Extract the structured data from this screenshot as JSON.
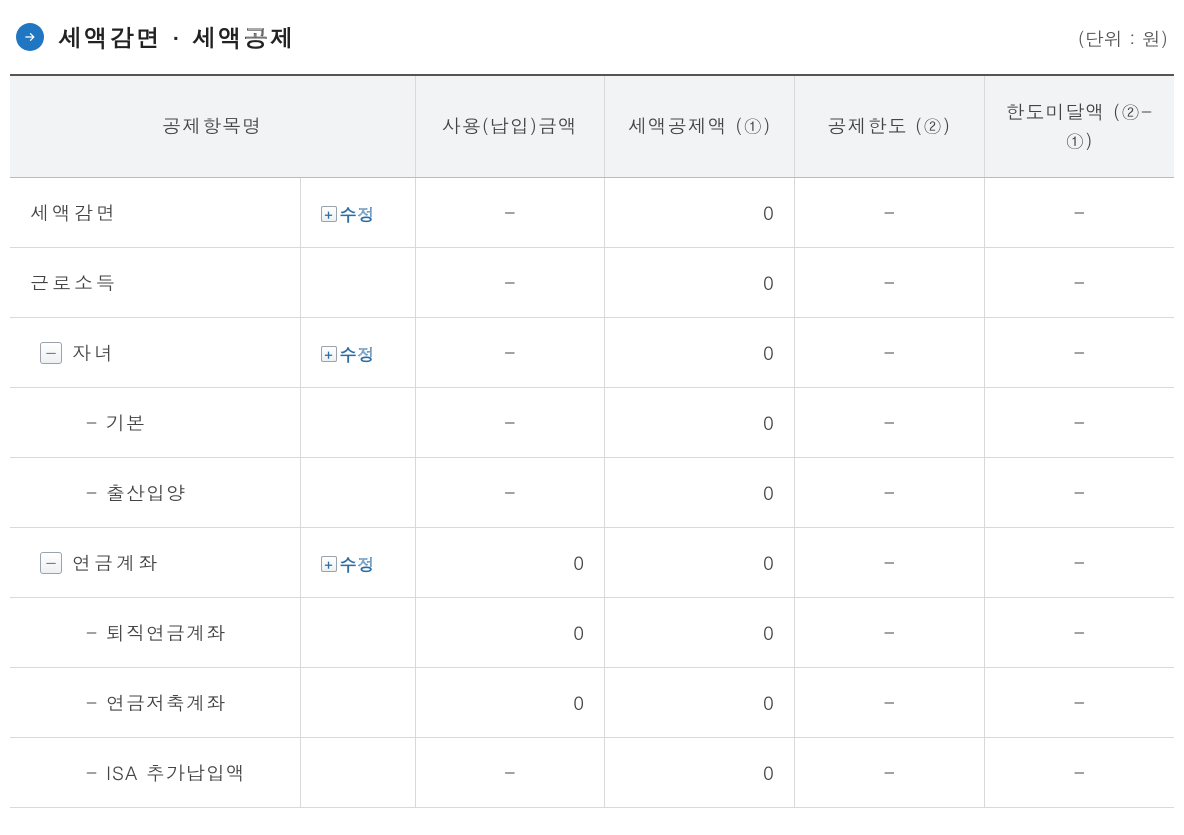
{
  "header": {
    "title": "세액감면 · 세액공제",
    "unit": "(단위 : 원)"
  },
  "table": {
    "columns": {
      "name": "공제항목명",
      "usage": "사용(납입)금액",
      "deduction": "세액공제액 (①)",
      "limit": "공제한도 (②)",
      "under": "한도미달액 (②-①)"
    },
    "edit_label": "수정",
    "widths": {
      "name": 290,
      "edit": 115,
      "col": 194
    },
    "rows": [
      {
        "label": "세액감면",
        "toggle": null,
        "indent": 0,
        "editable": true,
        "usage": "-",
        "deduction": "0",
        "limit": "-",
        "under": "-"
      },
      {
        "label": "근로소득",
        "toggle": null,
        "indent": 0,
        "editable": false,
        "usage": "-",
        "deduction": "0",
        "limit": "-",
        "under": "-"
      },
      {
        "label": "자녀",
        "toggle": "minus",
        "indent": 1,
        "editable": true,
        "usage": "-",
        "deduction": "0",
        "limit": "-",
        "under": "-"
      },
      {
        "label": "기본",
        "toggle": null,
        "indent": 2,
        "editable": false,
        "usage": "-",
        "deduction": "0",
        "limit": "-",
        "under": "-"
      },
      {
        "label": "출산입양",
        "toggle": null,
        "indent": 2,
        "editable": false,
        "usage": "-",
        "deduction": "0",
        "limit": "-",
        "under": "-"
      },
      {
        "label": "연금계좌",
        "toggle": "minus",
        "indent": 1,
        "editable": true,
        "usage": "0",
        "deduction": "0",
        "limit": "-",
        "under": "-"
      },
      {
        "label": "퇴직연금계좌",
        "toggle": null,
        "indent": 2,
        "editable": false,
        "usage": "0",
        "deduction": "0",
        "limit": "-",
        "under": "-"
      },
      {
        "label": "연금저축계좌",
        "toggle": null,
        "indent": 2,
        "editable": false,
        "usage": "0",
        "deduction": "0",
        "limit": "-",
        "under": "-"
      },
      {
        "label": "ISA 추가납입액",
        "toggle": null,
        "indent": 2,
        "editable": false,
        "usage": "-",
        "deduction": "0",
        "limit": "-",
        "under": "-"
      }
    ]
  },
  "colors": {
    "accent": "#2176c1",
    "link": "#2e6da4",
    "header_bg": "#f2f3f5",
    "border": "#d9d9d9",
    "top_border": "#555555",
    "text": "#444444"
  }
}
